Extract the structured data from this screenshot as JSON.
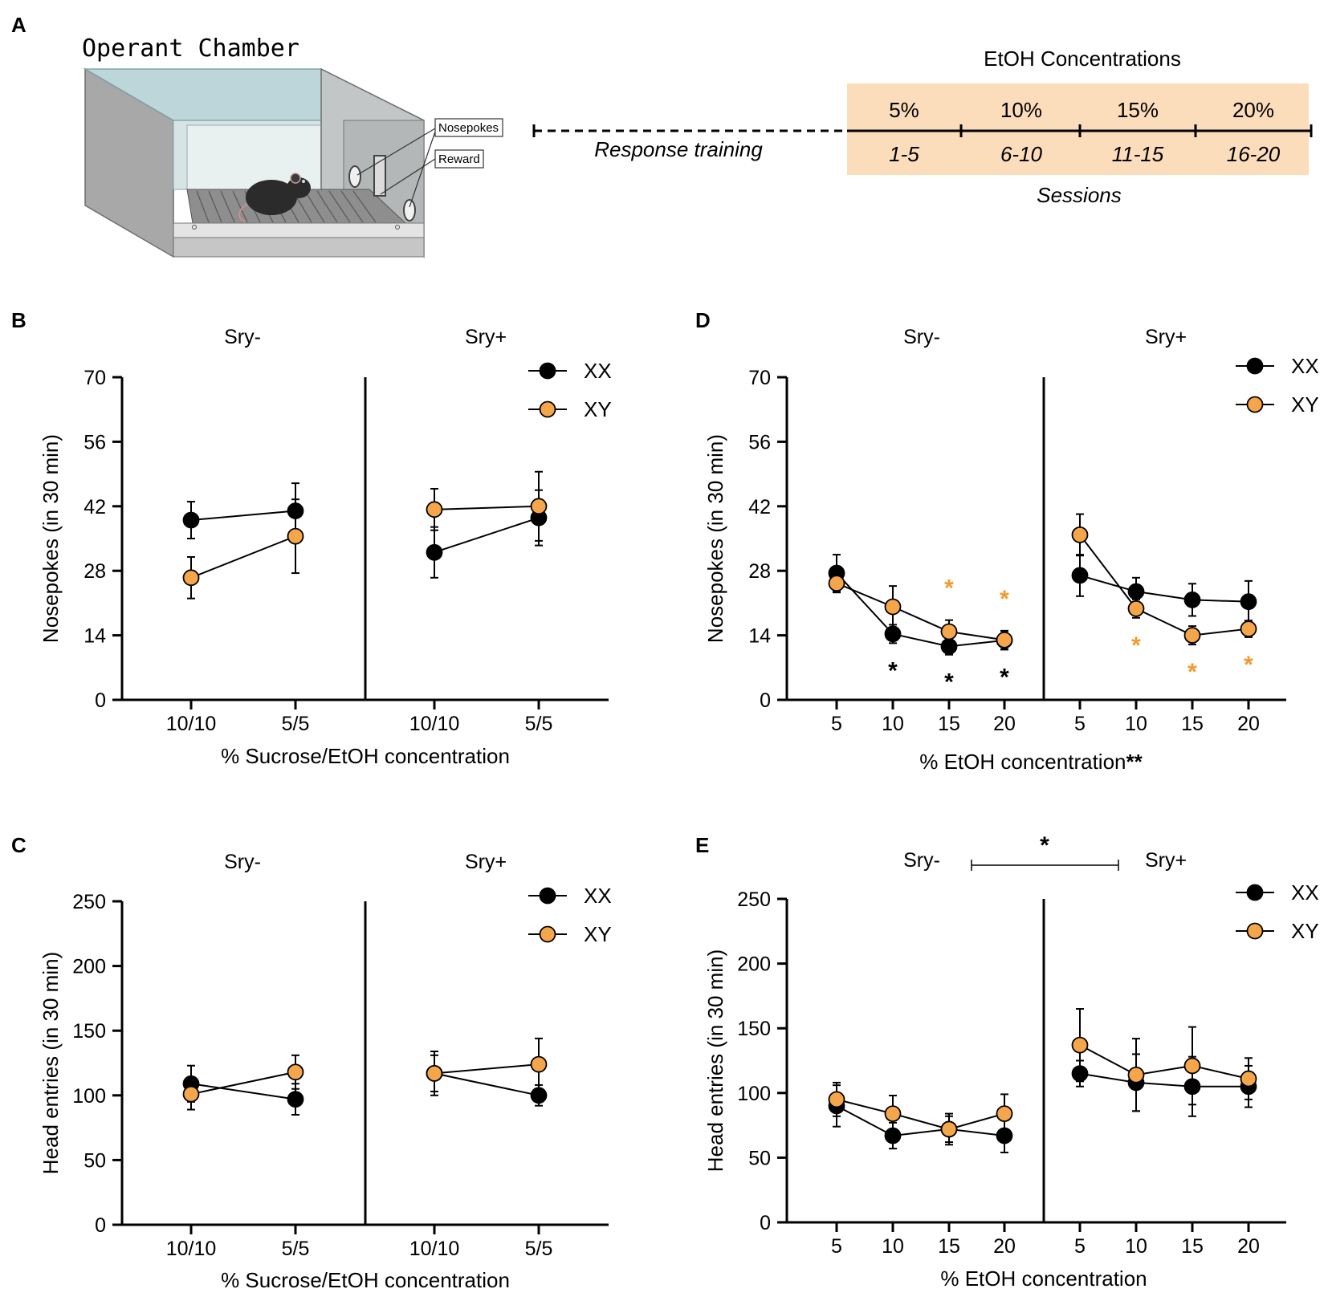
{
  "panel_a": {
    "label": "A",
    "chamber_title": "Operant Chamber",
    "nosepokes_callout": "Nosepokes",
    "reward_callout": "Reward",
    "timeline": {
      "title": "EtOH Concentrations",
      "training_label": "Response training",
      "sessions_label": "Sessions",
      "concentrations": [
        "5%",
        "10%",
        "15%",
        "20%"
      ],
      "session_ranges": [
        "1-5",
        "6-10",
        "11-15",
        "16-20"
      ],
      "block_color": "#fbdcbb"
    }
  },
  "colors": {
    "xx": "#000000",
    "xy": "#f5a64a",
    "sig_orange": "#f29a2e",
    "axis": "#000000"
  },
  "chart_data": [
    {
      "panel": "B",
      "type": "line",
      "title": "",
      "xlabel": "% Sucrose/EtOH concentration",
      "ylabel": "Nosepokes (in 30 min)",
      "ylim": [
        0,
        70
      ],
      "yticks": [
        "0",
        "14",
        "28",
        "42",
        "56",
        "70"
      ],
      "groups": [
        {
          "name": "Sry-",
          "categories": [
            "10/10",
            "5/5"
          ],
          "series": [
            {
              "name": "XX",
              "values": [
                39,
                41
              ],
              "errors": [
                4,
                6
              ]
            },
            {
              "name": "XY",
              "values": [
                26.5,
                35.5
              ],
              "errors": [
                4.5,
                8
              ]
            }
          ]
        },
        {
          "name": "Sry+",
          "categories": [
            "10/10",
            "5/5"
          ],
          "series": [
            {
              "name": "XX",
              "values": [
                32,
                39.5
              ],
              "errors": [
                5.5,
                6
              ]
            },
            {
              "name": "XY",
              "values": [
                41.3,
                42
              ],
              "errors": [
                4.5,
                7.5
              ]
            }
          ]
        }
      ],
      "legend": [
        "XX",
        "XY"
      ],
      "legend_position": "top-right",
      "annotations": []
    },
    {
      "panel": "D",
      "type": "line",
      "title": "",
      "xlabel": "% EtOH concentration",
      "xlabel_suffix": "**",
      "ylabel": "Nosepokes (in 30 min)",
      "ylim": [
        0,
        70
      ],
      "yticks": [
        "0",
        "14",
        "28",
        "42",
        "56",
        "70"
      ],
      "groups": [
        {
          "name": "Sry-",
          "categories": [
            "5",
            "10",
            "15",
            "20"
          ],
          "series": [
            {
              "name": "XX",
              "values": [
                27.5,
                14.3,
                11.6,
                12.9
              ],
              "errors": [
                4,
                2,
                1.8,
                2
              ],
              "markers": [
                "",
                "*",
                "*",
                "*"
              ]
            },
            {
              "name": "XY",
              "values": [
                25.3,
                20.2,
                14.8,
                13
              ],
              "errors": [
                2,
                4.5,
                2.5,
                2
              ],
              "markers": [
                "",
                "",
                "*",
                "*"
              ]
            }
          ]
        },
        {
          "name": "Sry+",
          "categories": [
            "5",
            "10",
            "15",
            "20"
          ],
          "series": [
            {
              "name": "XX",
              "values": [
                27,
                23.5,
                21.7,
                21.3
              ],
              "errors": [
                4.5,
                3,
                3.5,
                4.5
              ]
            },
            {
              "name": "XY",
              "values": [
                35.8,
                19.8,
                14,
                15.4
              ],
              "errors": [
                4.5,
                2,
                2,
                1.8
              ],
              "markers": [
                "",
                "*",
                "*",
                "*"
              ]
            }
          ]
        }
      ],
      "legend": [
        "XX",
        "XY"
      ],
      "legend_position": "top-right",
      "annotations": []
    },
    {
      "panel": "C",
      "type": "line",
      "title": "",
      "xlabel": "% Sucrose/EtOH concentration",
      "ylabel": "Head entries (in 30 min)",
      "ylim": [
        0,
        250
      ],
      "yticks": [
        "0",
        "50",
        "100",
        "150",
        "200",
        "250"
      ],
      "groups": [
        {
          "name": "Sry-",
          "categories": [
            "10/10",
            "5/5"
          ],
          "series": [
            {
              "name": "XX",
              "values": [
                109,
                97
              ],
              "errors": [
                14,
                12
              ]
            },
            {
              "name": "XY",
              "values": [
                101,
                118
              ],
              "errors": [
                12,
                13
              ]
            }
          ]
        },
        {
          "name": "Sry+",
          "categories": [
            "10/10",
            "5/5"
          ],
          "series": [
            {
              "name": "XX",
              "values": [
                117,
                100
              ],
              "errors": [
                17,
                8
              ]
            },
            {
              "name": "XY",
              "values": [
                117,
                124
              ],
              "errors": [
                14,
                20
              ]
            }
          ]
        }
      ],
      "legend": [
        "XX",
        "XY"
      ],
      "legend_position": "top-right",
      "annotations": []
    },
    {
      "panel": "E",
      "type": "line",
      "title": "",
      "xlabel": "% EtOH concentration",
      "ylabel": "Head entries (in 30 min)",
      "ylim": [
        0,
        250
      ],
      "yticks": [
        "0",
        "50",
        "100",
        "150",
        "200",
        "250"
      ],
      "groups": [
        {
          "name": "Sry-",
          "categories": [
            "5",
            "10",
            "15",
            "20"
          ],
          "series": [
            {
              "name": "XX",
              "values": [
                90,
                67,
                72,
                67
              ],
              "errors": [
                16,
                10,
                10,
                13
              ]
            },
            {
              "name": "XY",
              "values": [
                95,
                84,
                72,
                84
              ],
              "errors": [
                13,
                14,
                12,
                15
              ]
            }
          ]
        },
        {
          "name": "Sry+",
          "categories": [
            "5",
            "10",
            "15",
            "20"
          ],
          "series": [
            {
              "name": "XX",
              "values": [
                115,
                108,
                105,
                105
              ],
              "errors": [
                10,
                22,
                23,
                16
              ]
            },
            {
              "name": "XY",
              "values": [
                137,
                114,
                121,
                111
              ],
              "errors": [
                28,
                28,
                30,
                16
              ]
            }
          ]
        }
      ],
      "legend": [
        "XX",
        "XY"
      ],
      "legend_position": "top-right",
      "annotations": [
        {
          "text": "*",
          "meaning": "Sry- vs Sry+ bracket"
        }
      ]
    }
  ]
}
